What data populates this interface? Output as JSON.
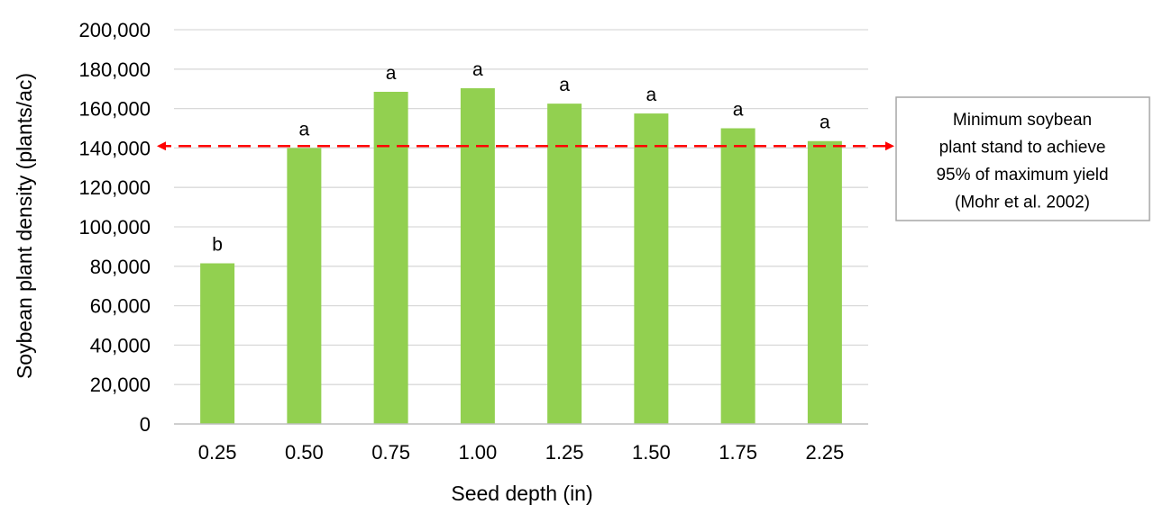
{
  "chart_data": {
    "type": "bar",
    "title": "",
    "xlabel": "Seed depth (in)",
    "ylabel": "Soybean plant density (plants/ac)",
    "categories": [
      "0.25",
      "0.50",
      "0.75",
      "1.00",
      "1.25",
      "1.50",
      "1.75",
      "2.25"
    ],
    "values": [
      81500,
      140000,
      168500,
      170300,
      162500,
      157500,
      150000,
      143500
    ],
    "significance_letters": [
      "b",
      "a",
      "a",
      "a",
      "a",
      "a",
      "a",
      "a"
    ],
    "ylim": [
      0,
      200000
    ],
    "yticks": [
      0,
      20000,
      40000,
      60000,
      80000,
      100000,
      120000,
      140000,
      160000,
      180000,
      200000
    ],
    "ytick_labels": [
      "0",
      "20,000",
      "40,000",
      "60,000",
      "80,000",
      "100,000",
      "120,000",
      "140,000",
      "160,000",
      "180,000",
      "200,000"
    ],
    "grid": true,
    "bar_color": "#92d050",
    "reference_line": {
      "value": 141000,
      "color": "#ff0000",
      "style": "dashed-arrow",
      "annotation_lines": [
        "Minimum soybean",
        "plant stand to achieve",
        "95% of maximum yield",
        "(Mohr et al. 2002)"
      ]
    }
  }
}
